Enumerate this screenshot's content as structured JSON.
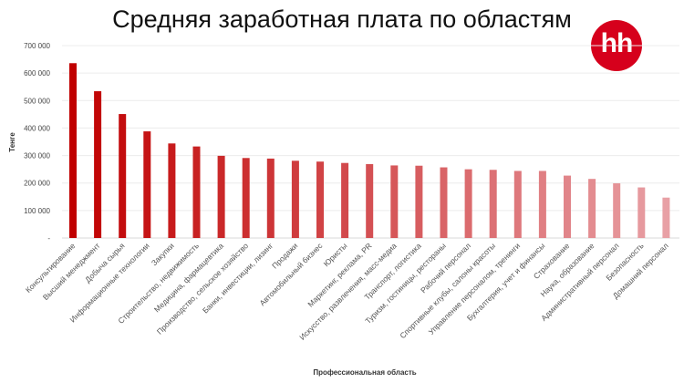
{
  "chart_data": {
    "type": "bar",
    "title": "Средняя заработная плата по областям",
    "xlabel": "Профессиональная область",
    "ylabel": "Тенге",
    "ylim": [
      0,
      700000
    ],
    "yticks": [
      0,
      100000,
      200000,
      300000,
      400000,
      500000,
      600000,
      700000
    ],
    "ytick_labels": [
      "-",
      "100 000",
      "200 000",
      "300 000",
      "400 000",
      "500 000",
      "600 000",
      "700 000"
    ],
    "grid": true,
    "categories": [
      "Консультирование",
      "Высший менеджмент",
      "Добыча сырья",
      "Информационные технологии",
      "Закупки",
      "Строительство, недвижимость",
      "Медицина, фармацевтика",
      "Производство, сельское хозяйство",
      "Банки, инвестиции, лизинг",
      "Продажи",
      "Автомобильный бизнес",
      "Юристы",
      "Маркетинг, реклама, PR",
      "Искусство, развлечения, масс-медиа",
      "Транспорт, логистика",
      "Туризм, гостиницы, рестораны",
      "Рабочий персонал",
      "Спортивные клубы, салоны красоты",
      "Управление персоналом, тренинги",
      "Бухгалтерия, учет и финансы",
      "Страхование",
      "Наука, образование",
      "Административный персонал",
      "Безопасность",
      "Домашний персонал"
    ],
    "values": [
      636000,
      534000,
      451000,
      388000,
      344000,
      333000,
      299000,
      291000,
      289000,
      281000,
      278000,
      273000,
      269000,
      264000,
      263000,
      257000,
      250000,
      248000,
      244000,
      244000,
      227000,
      215000,
      199000,
      184000,
      147000
    ],
    "colors": {
      "start": "#c00000",
      "end": "#e8a0a5"
    }
  },
  "logo": {
    "text": "hh",
    "color": "#d6001c"
  }
}
